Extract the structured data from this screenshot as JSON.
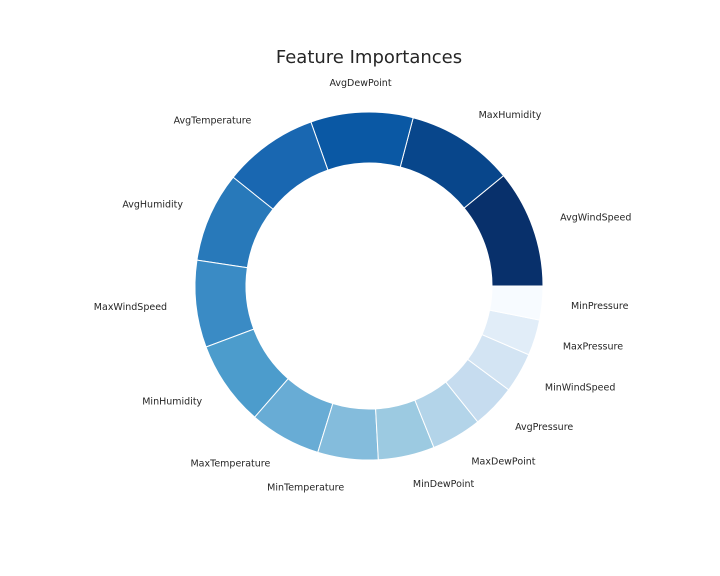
{
  "chart_data": {
    "type": "pie",
    "style": "donut",
    "title": "Feature Importances",
    "start_angle_deg": 0,
    "direction": "counterclockwise",
    "categories": [
      "AvgWindSpeed",
      "MaxHumidity",
      "AvgDewPoint",
      "AvgTemperature",
      "AvgHumidity",
      "MaxWindSpeed",
      "MinHumidity",
      "MaxTemperature",
      "MinTemperature",
      "MinDewPoint",
      "MaxDewPoint",
      "AvgPressure",
      "MinWindSpeed",
      "MaxPressure",
      "MinPressure"
    ],
    "values": [
      11.5,
      10.5,
      10.0,
      9.3,
      8.8,
      8.5,
      8.3,
      7.0,
      5.9,
      5.5,
      4.9,
      4.3,
      3.9,
      3.5,
      3.3
    ],
    "colors": [
      "#08306b",
      "#08468b",
      "#0a58a4",
      "#1967b1",
      "#2879ba",
      "#3a8bc5",
      "#4c9ccc",
      "#68acd5",
      "#84bcdc",
      "#9ccae1",
      "#b3d4e9",
      "#c6dcef",
      "#d3e4f3",
      "#e1edf8",
      "#f7fbff"
    ]
  }
}
